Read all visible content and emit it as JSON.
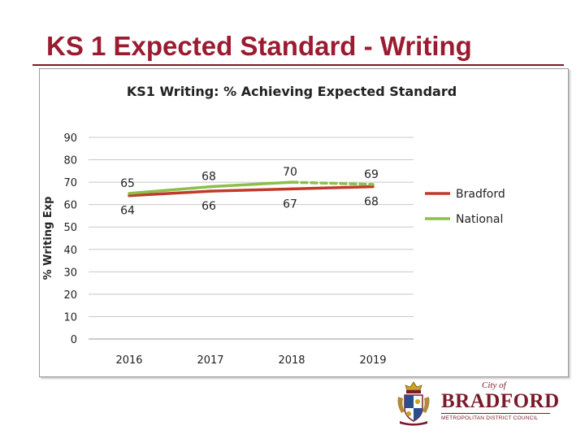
{
  "slide": {
    "title": "KS 1 Expected Standard - Writing"
  },
  "chart_data": {
    "type": "line",
    "title": "KS1 Writing: % Achieving Expected Standard",
    "ylabel": "% Writing Exp",
    "xlabel": "",
    "categories": [
      "2016",
      "2017",
      "2018",
      "2019"
    ],
    "ylim": [
      0,
      90
    ],
    "yticks": [
      0,
      10,
      20,
      30,
      40,
      50,
      60,
      70,
      80,
      90
    ],
    "grid": true,
    "legend_position": "right",
    "series": [
      {
        "name": "Bradford",
        "values": [
          64,
          66,
          67,
          68
        ],
        "color": "#c0392b",
        "dashed_last_segment": false
      },
      {
        "name": "National",
        "values": [
          65,
          68,
          70,
          69
        ],
        "color": "#8cbf4a",
        "dashed_last_segment": true
      }
    ]
  },
  "logo": {
    "city_of": "City of",
    "name": "BRADFORD",
    "subtitle": "METROPOLITAN DISTRICT COUNCIL",
    "color": "#7a1a2a"
  }
}
